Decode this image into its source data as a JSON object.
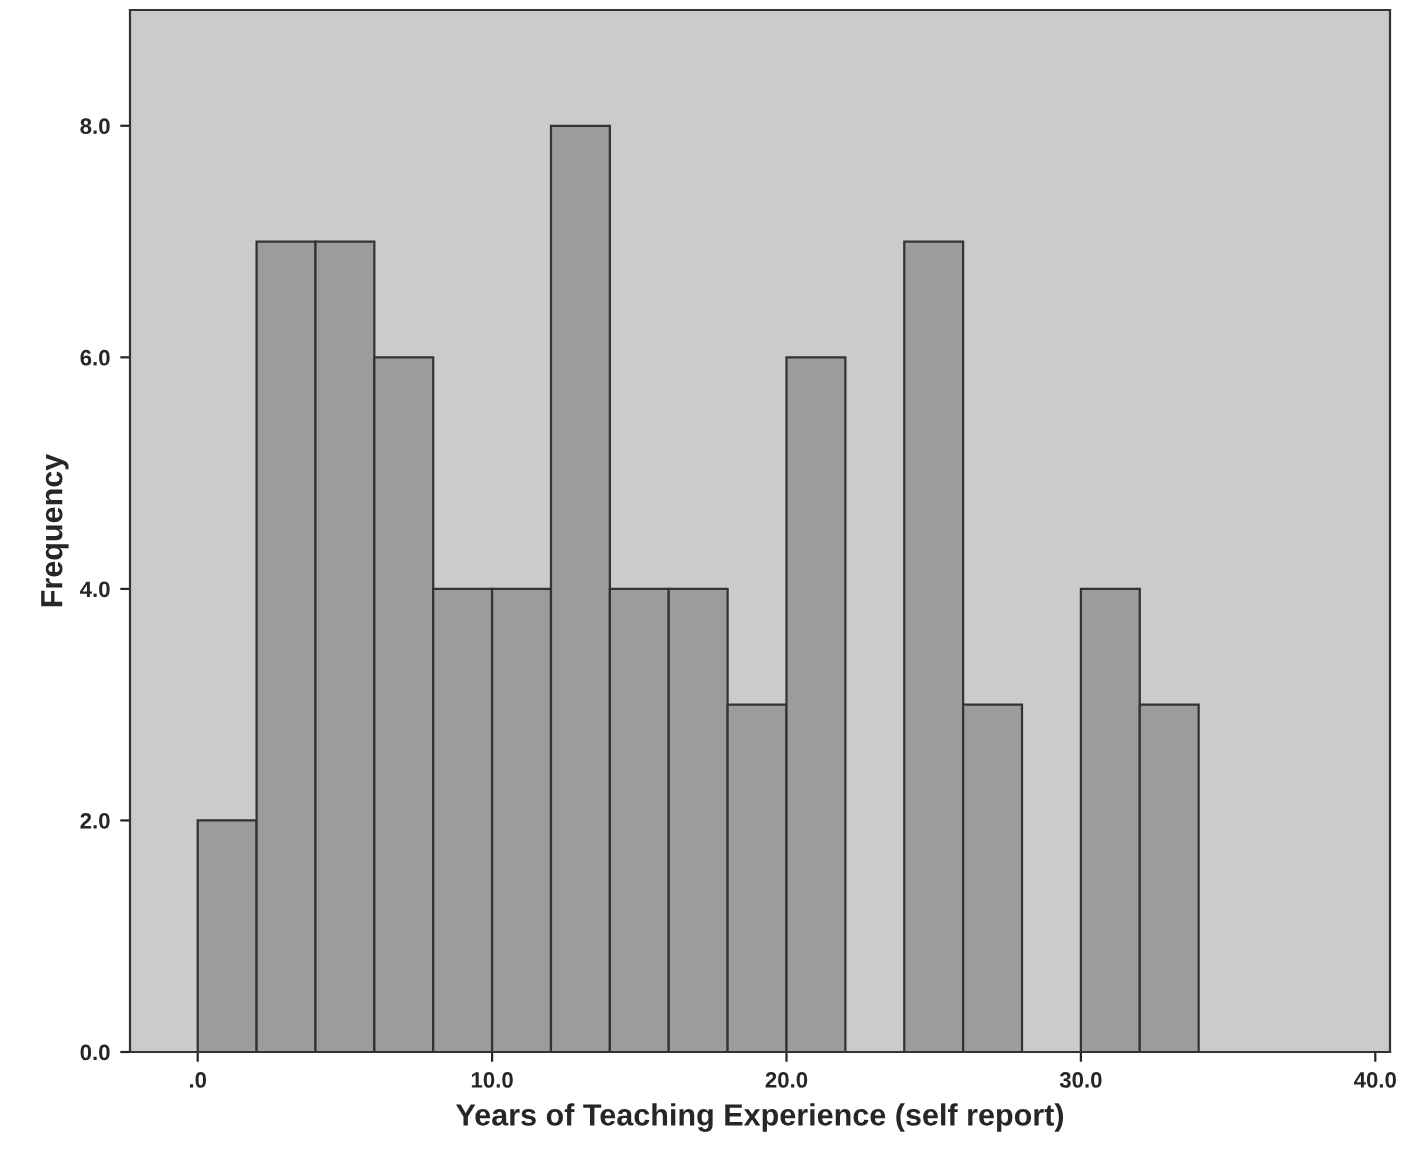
{
  "chart_data": {
    "type": "histogram",
    "xlabel": "Years of Teaching Experience (self report)",
    "ylabel": "Frequency",
    "bins": [
      0,
      2,
      4,
      6,
      8,
      10,
      12,
      14,
      16,
      18,
      20,
      22,
      24,
      26,
      28,
      30,
      32,
      34
    ],
    "values": [
      2,
      7,
      7,
      6,
      4,
      4,
      8,
      4,
      4,
      3,
      6,
      0,
      7,
      3,
      0,
      4,
      3
    ],
    "color": "#9c9c9c",
    "xlim": [
      -2.3,
      40.5
    ],
    "xticks": [
      {
        "value": 0,
        "label": ".0"
      },
      {
        "value": 10,
        "label": "10.0"
      },
      {
        "value": 20,
        "label": "20.0"
      },
      {
        "value": 30,
        "label": "30.0"
      },
      {
        "value": 40,
        "label": "40.0"
      }
    ],
    "ylim": [
      0,
      9
    ],
    "yticks": [
      {
        "value": 0,
        "label": "0.0"
      },
      {
        "value": 2,
        "label": "2.0"
      },
      {
        "value": 4,
        "label": "4.0"
      },
      {
        "value": 6,
        "label": "6.0"
      },
      {
        "value": 8,
        "label": "8.0"
      }
    ],
    "tick_labels": "xy"
  }
}
